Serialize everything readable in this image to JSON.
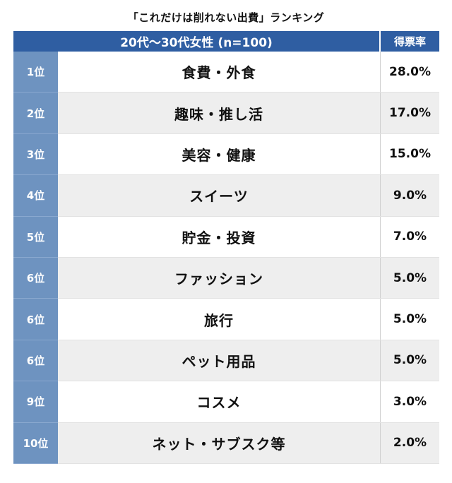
{
  "chart_data": {
    "type": "table",
    "title": "「これだけは削れない出費」ランキング",
    "header": {
      "group": "20代〜30代女性 (n=100)",
      "score": "得票率"
    },
    "rows": [
      {
        "rank": "1位",
        "item": "食費・外食",
        "value": 28.0,
        "value_label": "28.0%"
      },
      {
        "rank": "2位",
        "item": "趣味・推し活",
        "value": 17.0,
        "value_label": "17.0%"
      },
      {
        "rank": "3位",
        "item": "美容・健康",
        "value": 15.0,
        "value_label": "15.0%"
      },
      {
        "rank": "4位",
        "item": "スイーツ",
        "value": 9.0,
        "value_label": "9.0%"
      },
      {
        "rank": "5位",
        "item": "貯金・投資",
        "value": 7.0,
        "value_label": "7.0%"
      },
      {
        "rank": "6位",
        "item": "ファッション",
        "value": 5.0,
        "value_label": "5.0%"
      },
      {
        "rank": "6位",
        "item": "旅行",
        "value": 5.0,
        "value_label": "5.0%"
      },
      {
        "rank": "6位",
        "item": "ペット用品",
        "value": 5.0,
        "value_label": "5.0%"
      },
      {
        "rank": "9位",
        "item": "コスメ",
        "value": 3.0,
        "value_label": "3.0%"
      },
      {
        "rank": "10位",
        "item": "ネット・サブスク等",
        "value": 2.0,
        "value_label": "2.0%"
      }
    ]
  },
  "colors": {
    "header_bg": "#2f5ea2",
    "rank_bg": "#6e93c0",
    "row_alt_bg": "#eeeeee"
  }
}
